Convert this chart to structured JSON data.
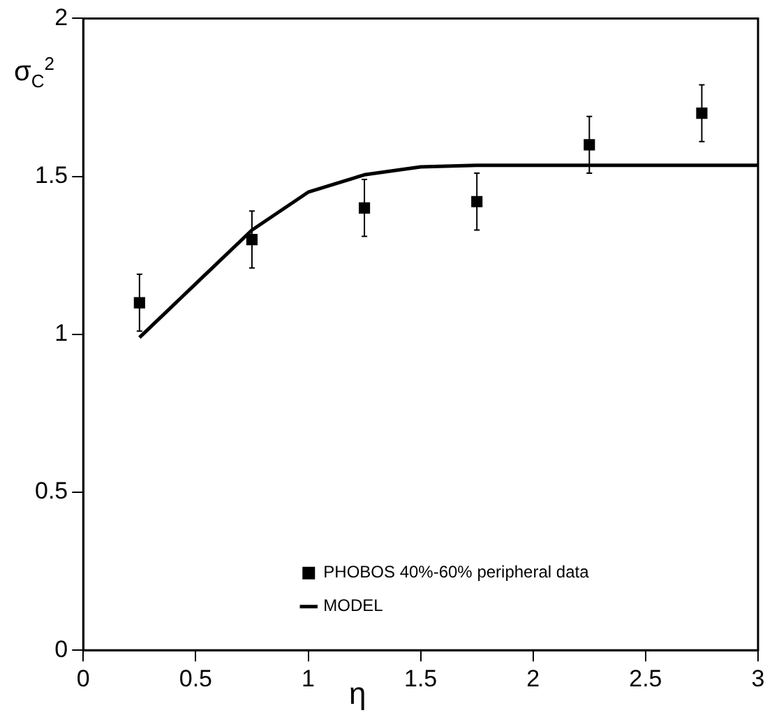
{
  "chart_data": {
    "type": "scatter",
    "xlabel": "η",
    "ylabel": "σ$_{C}$$^{2}$",
    "xlim": [
      0,
      3
    ],
    "xticks": [
      0,
      0.5,
      1,
      1.5,
      2,
      2.5,
      3
    ],
    "ylim": [
      0,
      2
    ],
    "yticks": [
      0,
      0.5,
      1,
      1.5,
      2
    ],
    "grid": false,
    "legend": "bottom right",
    "series": [
      {
        "name": "PHOBOS 40%-60% peripheral data",
        "type": "scatter",
        "marker": "square",
        "color": "#000000",
        "x": [
          0.25,
          0.75,
          1.25,
          1.75,
          2.25,
          2.75
        ],
        "values": [
          1.1,
          1.3,
          1.4,
          1.42,
          1.6,
          1.7
        ],
        "errors": [
          0.09,
          0.09,
          0.09,
          0.09,
          0.09,
          0.09
        ]
      },
      {
        "name": "MODEL",
        "type": "line",
        "marker": "none",
        "line_style": "solid",
        "color": "#000000",
        "x": [
          0.25,
          0.5,
          0.75,
          1.0,
          1.25,
          1.5,
          1.75,
          2.0,
          2.5,
          3.0
        ],
        "values": [
          0.99,
          1.16,
          1.33,
          1.45,
          1.505,
          1.53,
          1.535,
          1.535,
          1.535,
          1.535
        ]
      }
    ]
  }
}
